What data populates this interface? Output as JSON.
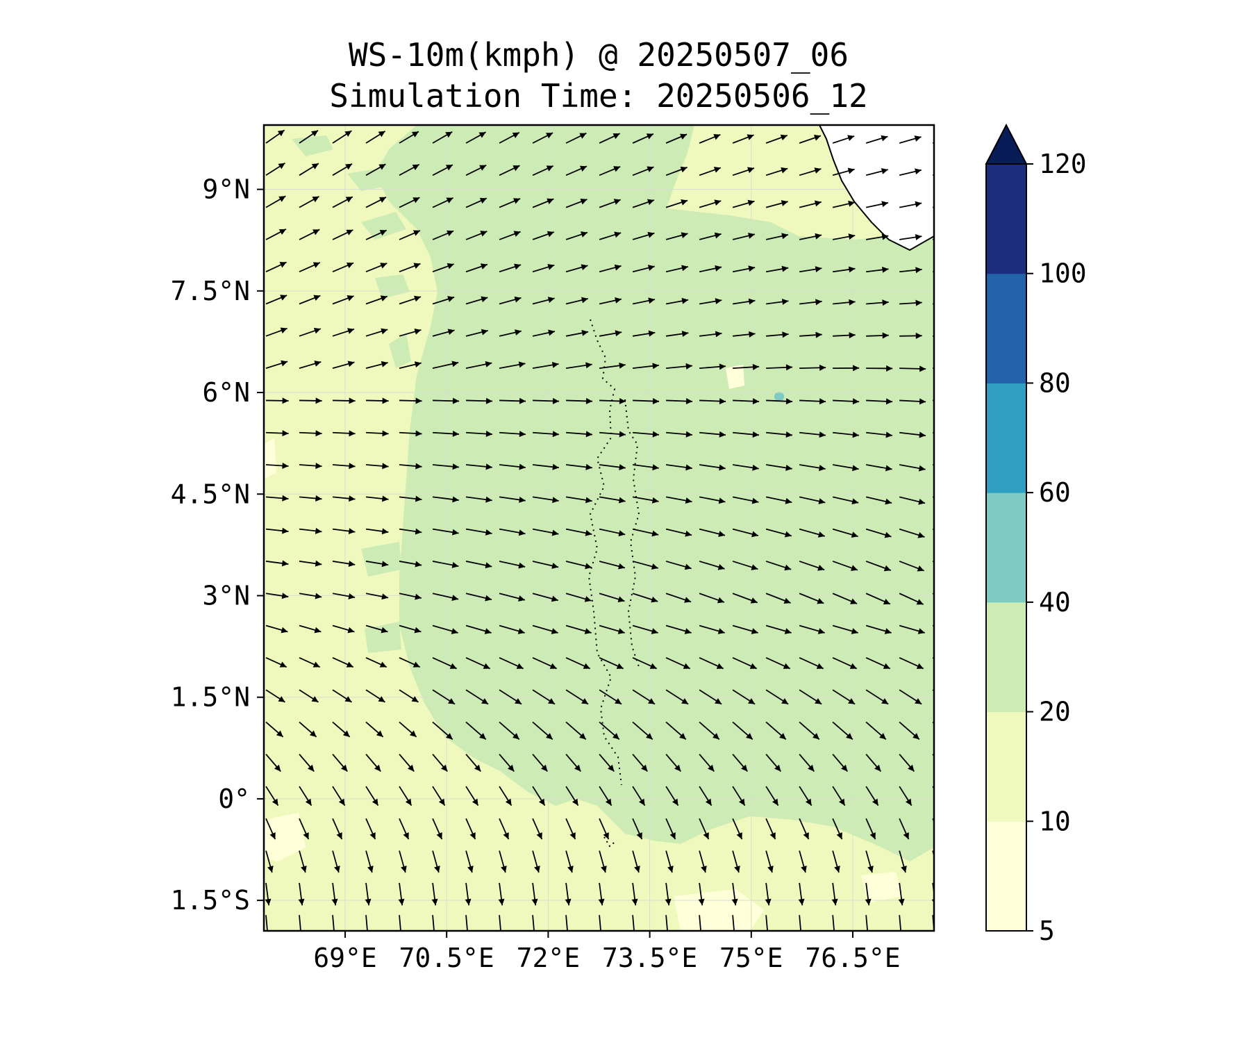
{
  "title": {
    "line1": "WS-10m(kmph) @ 20250507_06",
    "line2": "Simulation Time: 20250506_12"
  },
  "map": {
    "type": "wind-speed-map",
    "lon_range": [
      67.8,
      77.7
    ],
    "lat_range": [
      -1.95,
      9.95
    ],
    "grid_lines": true,
    "overlay": "wind-vectors",
    "lon_ticks": [
      {
        "value": 69,
        "label": "69°E"
      },
      {
        "value": 70.5,
        "label": "70.5°E"
      },
      {
        "value": 72,
        "label": "72°E"
      },
      {
        "value": 73.5,
        "label": "73.5°E"
      },
      {
        "value": 75,
        "label": "75°E"
      },
      {
        "value": 76.5,
        "label": "76.5°E"
      }
    ],
    "lat_ticks": [
      {
        "value": 9,
        "label": "9°N"
      },
      {
        "value": 7.5,
        "label": "7.5°N"
      },
      {
        "value": 6,
        "label": "6°N"
      },
      {
        "value": 4.5,
        "label": "4.5°N"
      },
      {
        "value": 3,
        "label": "3°N"
      },
      {
        "value": 1.5,
        "label": "1.5°N"
      },
      {
        "value": 0,
        "label": "0°"
      },
      {
        "value": -1.5,
        "label": "1.5°S"
      }
    ]
  },
  "colorbar": {
    "levels": [
      "5",
      "10",
      "20",
      "40",
      "60",
      "80",
      "100",
      "120"
    ],
    "colors": [
      "#ffffd9",
      "#eff9bd",
      "#cdebb4",
      "#7dcbc3",
      "#2fa0c1",
      "#2263aa",
      "#1d2e80"
    ],
    "extend_color": "#081d58",
    "extend": "max"
  },
  "colors": {
    "band_5_10": "#ffffd9",
    "band_10_20": "#eff9bd",
    "band_20_40": "#cdebb4",
    "band_40_60": "#7dcbc3"
  }
}
